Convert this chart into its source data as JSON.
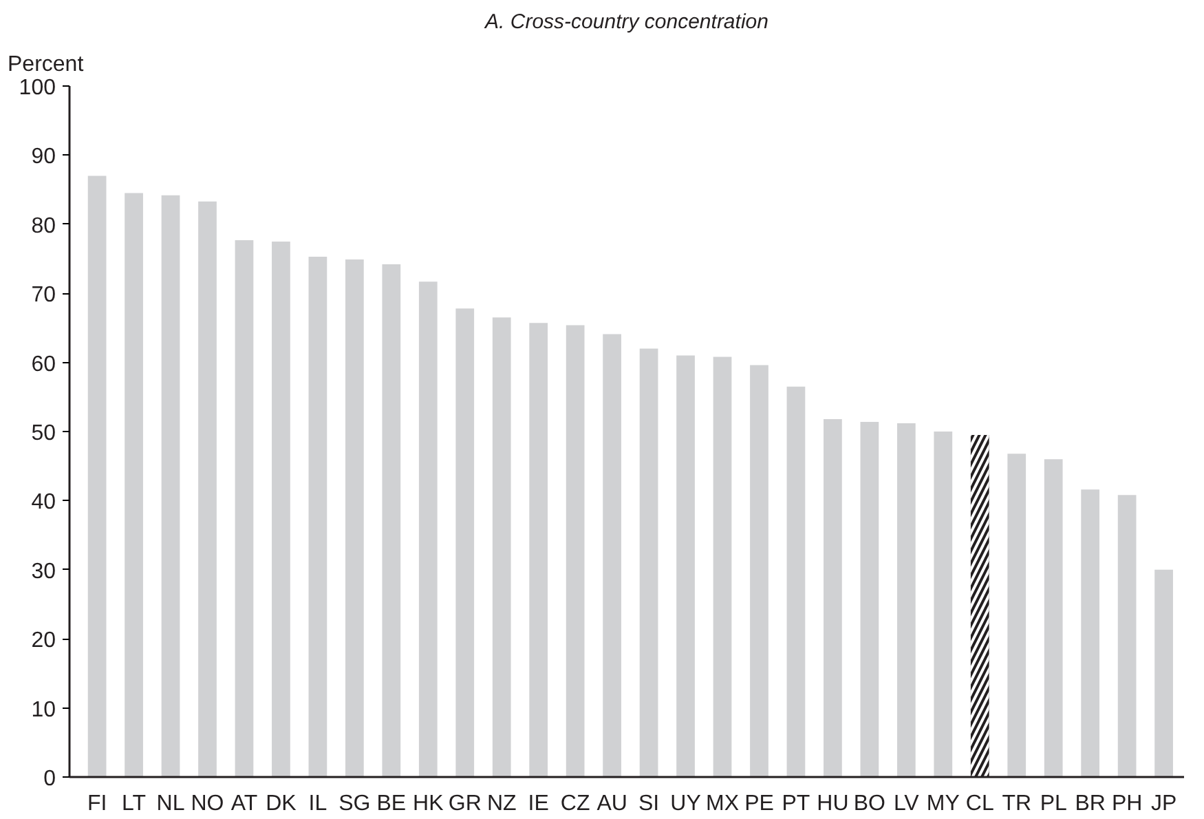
{
  "chart_data": {
    "type": "bar",
    "title": "A. Cross-country concentration",
    "ylabel": "Percent",
    "categories": [
      "FI",
      "LT",
      "NL",
      "NO",
      "AT",
      "DK",
      "IL",
      "SG",
      "BE",
      "HK",
      "GR",
      "NZ",
      "IE",
      "CZ",
      "AU",
      "SI",
      "UY",
      "MX",
      "PE",
      "PT",
      "HU",
      "BO",
      "LV",
      "MY",
      "CL",
      "TR",
      "PL",
      "BR",
      "PH",
      "JP"
    ],
    "values": [
      87,
      84.5,
      84.2,
      83.3,
      77.7,
      77.5,
      75.3,
      74.9,
      74.2,
      71.7,
      67.8,
      66.5,
      65.7,
      65.4,
      64.1,
      62,
      61,
      60.8,
      59.6,
      56.5,
      51.8,
      51.4,
      51.2,
      50,
      49.5,
      46.8,
      46,
      41.6,
      40.8,
      30
    ],
    "color": "#d0d1d3",
    "colors": [
      "#d0d1d3",
      "#d0d1d3",
      "#d0d1d3",
      "#d0d1d3",
      "#d0d1d3",
      "#d0d1d3",
      "#d0d1d3",
      "#d0d1d3",
      "#d0d1d3",
      "#d0d1d3",
      "#d0d1d3",
      "#d0d1d3",
      "#d0d1d3",
      "#d0d1d3",
      "#d0d1d3",
      "#d0d1d3",
      "#d0d1d3",
      "#d0d1d3",
      "#d0d1d3",
      "#d0d1d3",
      "#d0d1d3",
      "#d0d1d3",
      "#d0d1d3",
      "#d0d1d3",
      "#231f20",
      "#d0d1d3",
      "#d0d1d3",
      "#d0d1d3",
      "#d0d1d3",
      "#d0d1d3"
    ],
    "ylim": [
      0,
      100
    ],
    "yticks": [
      0,
      10,
      20,
      30,
      40,
      50,
      60,
      70,
      80,
      90,
      100
    ],
    "grid": false
  }
}
